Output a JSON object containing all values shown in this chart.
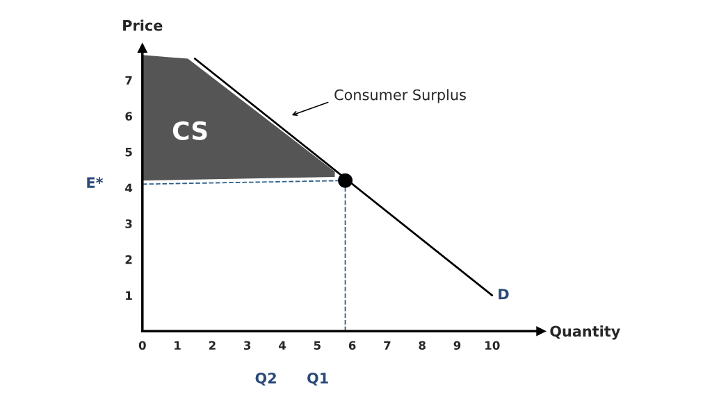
{
  "chart_data": {
    "type": "line",
    "xlabel": "Quantity",
    "ylabel": "Price",
    "xlim": [
      0,
      11.4
    ],
    "ylim": [
      0,
      7.9
    ],
    "xticks": [
      0,
      1,
      2,
      3,
      4,
      5,
      6,
      7,
      8,
      9,
      10
    ],
    "yticks": [
      1,
      2,
      3,
      4,
      5,
      6,
      7
    ],
    "grid": false,
    "legend": false,
    "series": [
      {
        "type": "area",
        "color": "#555555",
        "x": [
          0,
          1.3,
          5.5,
          5.5,
          0
        ],
        "values": [
          7.7,
          7.6,
          4.45,
          4.3,
          4.2
        ]
      },
      {
        "name": "D",
        "color": "#000000",
        "x": [
          1.5,
          10
        ],
        "values": [
          7.6,
          1.0
        ]
      },
      {
        "color": "#2d5f8a",
        "line_style": "dashed",
        "x": [
          0,
          5.8
        ],
        "values": [
          4.1,
          4.2
        ]
      },
      {
        "color": "#2d5f8a",
        "line_style": "dashed",
        "x": [
          5.8,
          5.8
        ],
        "values": [
          0,
          4.2
        ]
      },
      {
        "type": "scatter",
        "color": "#000000",
        "marker": "circle",
        "x": [
          5.8
        ],
        "values": [
          4.2
        ]
      }
    ],
    "annotations": [
      "CS",
      "Consumer Surplus",
      "E*",
      "Q2",
      "Q1"
    ]
  }
}
